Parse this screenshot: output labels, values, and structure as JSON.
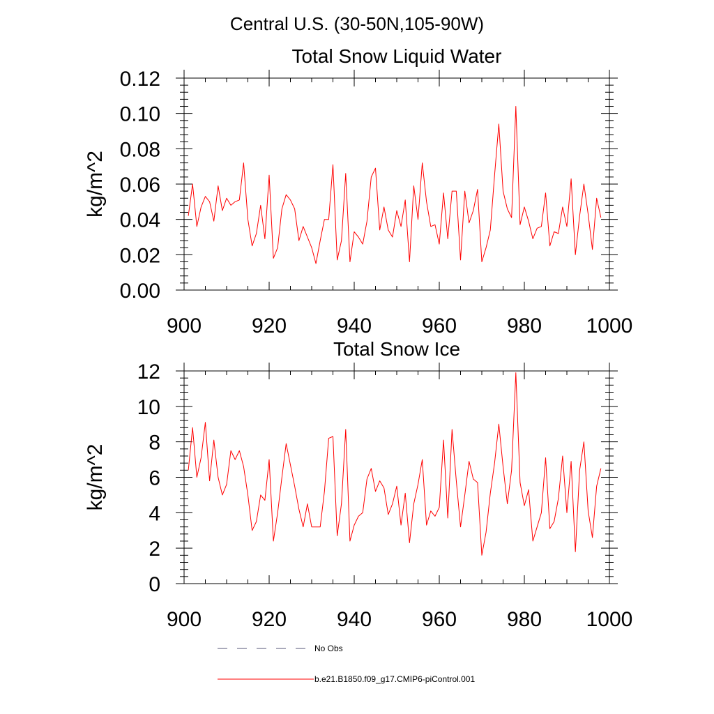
{
  "main_title": "Central U.S. (30-50N,105-90W)",
  "legend": {
    "items": [
      {
        "label": "No Obs",
        "color": "#555577",
        "style": "dashed"
      },
      {
        "label": "b.e21.B1850.f09_g17.CMIP6-piControl.001",
        "color": "#ff0000",
        "style": "solid"
      }
    ]
  },
  "chart_data": [
    {
      "type": "line",
      "title": "Total Snow Liquid Water",
      "xlabel": "",
      "ylabel": "kg/m^2",
      "xlim": [
        900,
        1000
      ],
      "ylim": [
        0,
        0.12
      ],
      "xticks": [
        900,
        920,
        940,
        960,
        980,
        1000
      ],
      "xtick_labels": [
        "900",
        "920",
        "940",
        "960",
        "980",
        "1000"
      ],
      "yticks": [
        0,
        0.02,
        0.04,
        0.06,
        0.08,
        0.1,
        0.12
      ],
      "ytick_labels": [
        "0.00",
        "0.02",
        "0.04",
        "0.06",
        "0.08",
        "0.10",
        "0.12"
      ],
      "series": [
        {
          "name": "b.e21.B1850.f09_g17.CMIP6-piControl.001",
          "color": "#ff0000",
          "x_start": 901,
          "values": [
            0.042,
            0.06,
            0.036,
            0.047,
            0.053,
            0.05,
            0.039,
            0.059,
            0.045,
            0.052,
            0.048,
            0.05,
            0.051,
            0.072,
            0.04,
            0.025,
            0.032,
            0.048,
            0.029,
            0.065,
            0.018,
            0.024,
            0.046,
            0.054,
            0.051,
            0.046,
            0.028,
            0.036,
            0.03,
            0.024,
            0.015,
            0.028,
            0.04,
            0.04,
            0.071,
            0.017,
            0.028,
            0.066,
            0.016,
            0.033,
            0.03,
            0.026,
            0.039,
            0.064,
            0.069,
            0.034,
            0.047,
            0.034,
            0.03,
            0.045,
            0.036,
            0.051,
            0.016,
            0.059,
            0.04,
            0.072,
            0.05,
            0.036,
            0.037,
            0.026,
            0.055,
            0.029,
            0.056,
            0.056,
            0.017,
            0.056,
            0.038,
            0.045,
            0.057,
            0.016,
            0.024,
            0.034,
            0.065,
            0.094,
            0.056,
            0.046,
            0.041,
            0.104,
            0.037,
            0.047,
            0.039,
            0.029,
            0.035,
            0.036,
            0.055,
            0.025,
            0.033,
            0.032,
            0.047,
            0.036,
            0.063,
            0.02,
            0.042,
            0.06,
            0.043,
            0.023,
            0.052,
            0.041
          ]
        }
      ]
    },
    {
      "type": "line",
      "title": "Total Snow Ice",
      "xlabel": "",
      "ylabel": "kg/m^2",
      "xlim": [
        900,
        1000
      ],
      "ylim": [
        0,
        12
      ],
      "xticks": [
        900,
        920,
        940,
        960,
        980,
        1000
      ],
      "xtick_labels": [
        "900",
        "920",
        "940",
        "960",
        "980",
        "1000"
      ],
      "yticks": [
        0,
        2,
        4,
        6,
        8,
        10,
        12
      ],
      "ytick_labels": [
        "0",
        "2",
        "4",
        "6",
        "8",
        "10",
        "12"
      ],
      "series": [
        {
          "name": "b.e21.B1850.f09_g17.CMIP6-piControl.001",
          "color": "#ff0000",
          "x_start": 901,
          "values": [
            6.4,
            8.8,
            6.0,
            7.1,
            9.1,
            5.8,
            8.1,
            6.0,
            5.0,
            5.6,
            7.5,
            7.0,
            7.5,
            6.6,
            5.0,
            3.0,
            3.5,
            5.0,
            4.7,
            7.0,
            2.4,
            4.0,
            6.0,
            7.9,
            6.7,
            5.5,
            4.2,
            3.2,
            4.5,
            3.2,
            3.2,
            3.2,
            5.2,
            8.2,
            8.3,
            2.7,
            4.5,
            8.7,
            2.4,
            3.3,
            3.8,
            4.0,
            5.9,
            6.5,
            5.2,
            5.8,
            5.4,
            3.9,
            4.5,
            5.5,
            3.3,
            5.1,
            2.3,
            4.5,
            5.6,
            7.0,
            3.3,
            4.1,
            3.8,
            4.3,
            8.1,
            3.7,
            8.7,
            5.8,
            3.2,
            5.0,
            6.9,
            5.9,
            5.7,
            1.6,
            2.9,
            5.1,
            6.8,
            9.0,
            6.6,
            4.5,
            6.4,
            11.9,
            5.7,
            4.4,
            5.3,
            2.4,
            3.2,
            4.0,
            7.1,
            3.1,
            3.5,
            4.8,
            7.2,
            4.0,
            6.9,
            1.8,
            6.4,
            8.0,
            4.1,
            2.6,
            5.5,
            6.5
          ]
        }
      ]
    }
  ]
}
